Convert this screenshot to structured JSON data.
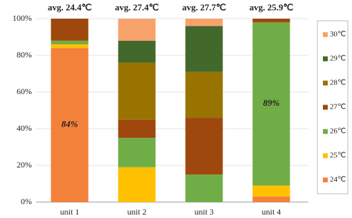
{
  "chart_data": {
    "type": "stacked_bar",
    "categories": [
      "unit 1",
      "unit 2",
      "unit 3",
      "unit 4"
    ],
    "annotations": [
      "avg. 24.4℃",
      "avg. 27.4℃",
      "avg. 27.7℃",
      "avg. 25.9℃"
    ],
    "series": [
      {
        "name": "24℃",
        "color": "#F4813A",
        "values": [
          84,
          0,
          0,
          3
        ],
        "value_labels": [
          "84%",
          null,
          null,
          null
        ]
      },
      {
        "name": "25℃",
        "color": "#FFC000",
        "values": [
          2,
          19,
          0,
          6
        ]
      },
      {
        "name": "26℃",
        "color": "#70AD47",
        "values": [
          2,
          16,
          15,
          89
        ],
        "value_labels": [
          null,
          null,
          null,
          "89%"
        ]
      },
      {
        "name": "27℃",
        "color": "#9E480E",
        "values": [
          12,
          10,
          31,
          2
        ]
      },
      {
        "name": "28℃",
        "color": "#997300",
        "values": [
          0,
          31,
          25,
          0
        ]
      },
      {
        "name": "29℃",
        "color": "#43682B",
        "values": [
          0,
          12,
          25,
          0
        ]
      },
      {
        "name": "30℃",
        "color": "#F7A26B",
        "values": [
          0,
          12,
          4,
          0
        ]
      }
    ],
    "ylim": [
      0,
      100
    ],
    "yticks": [
      {
        "value": 0,
        "label": "0%"
      },
      {
        "value": 20,
        "label": "20%"
      },
      {
        "value": 40,
        "label": "40%"
      },
      {
        "value": 60,
        "label": "60%"
      },
      {
        "value": 80,
        "label": "80%"
      },
      {
        "value": 100,
        "label": "100%"
      }
    ],
    "grid": true,
    "legend": "right"
  }
}
